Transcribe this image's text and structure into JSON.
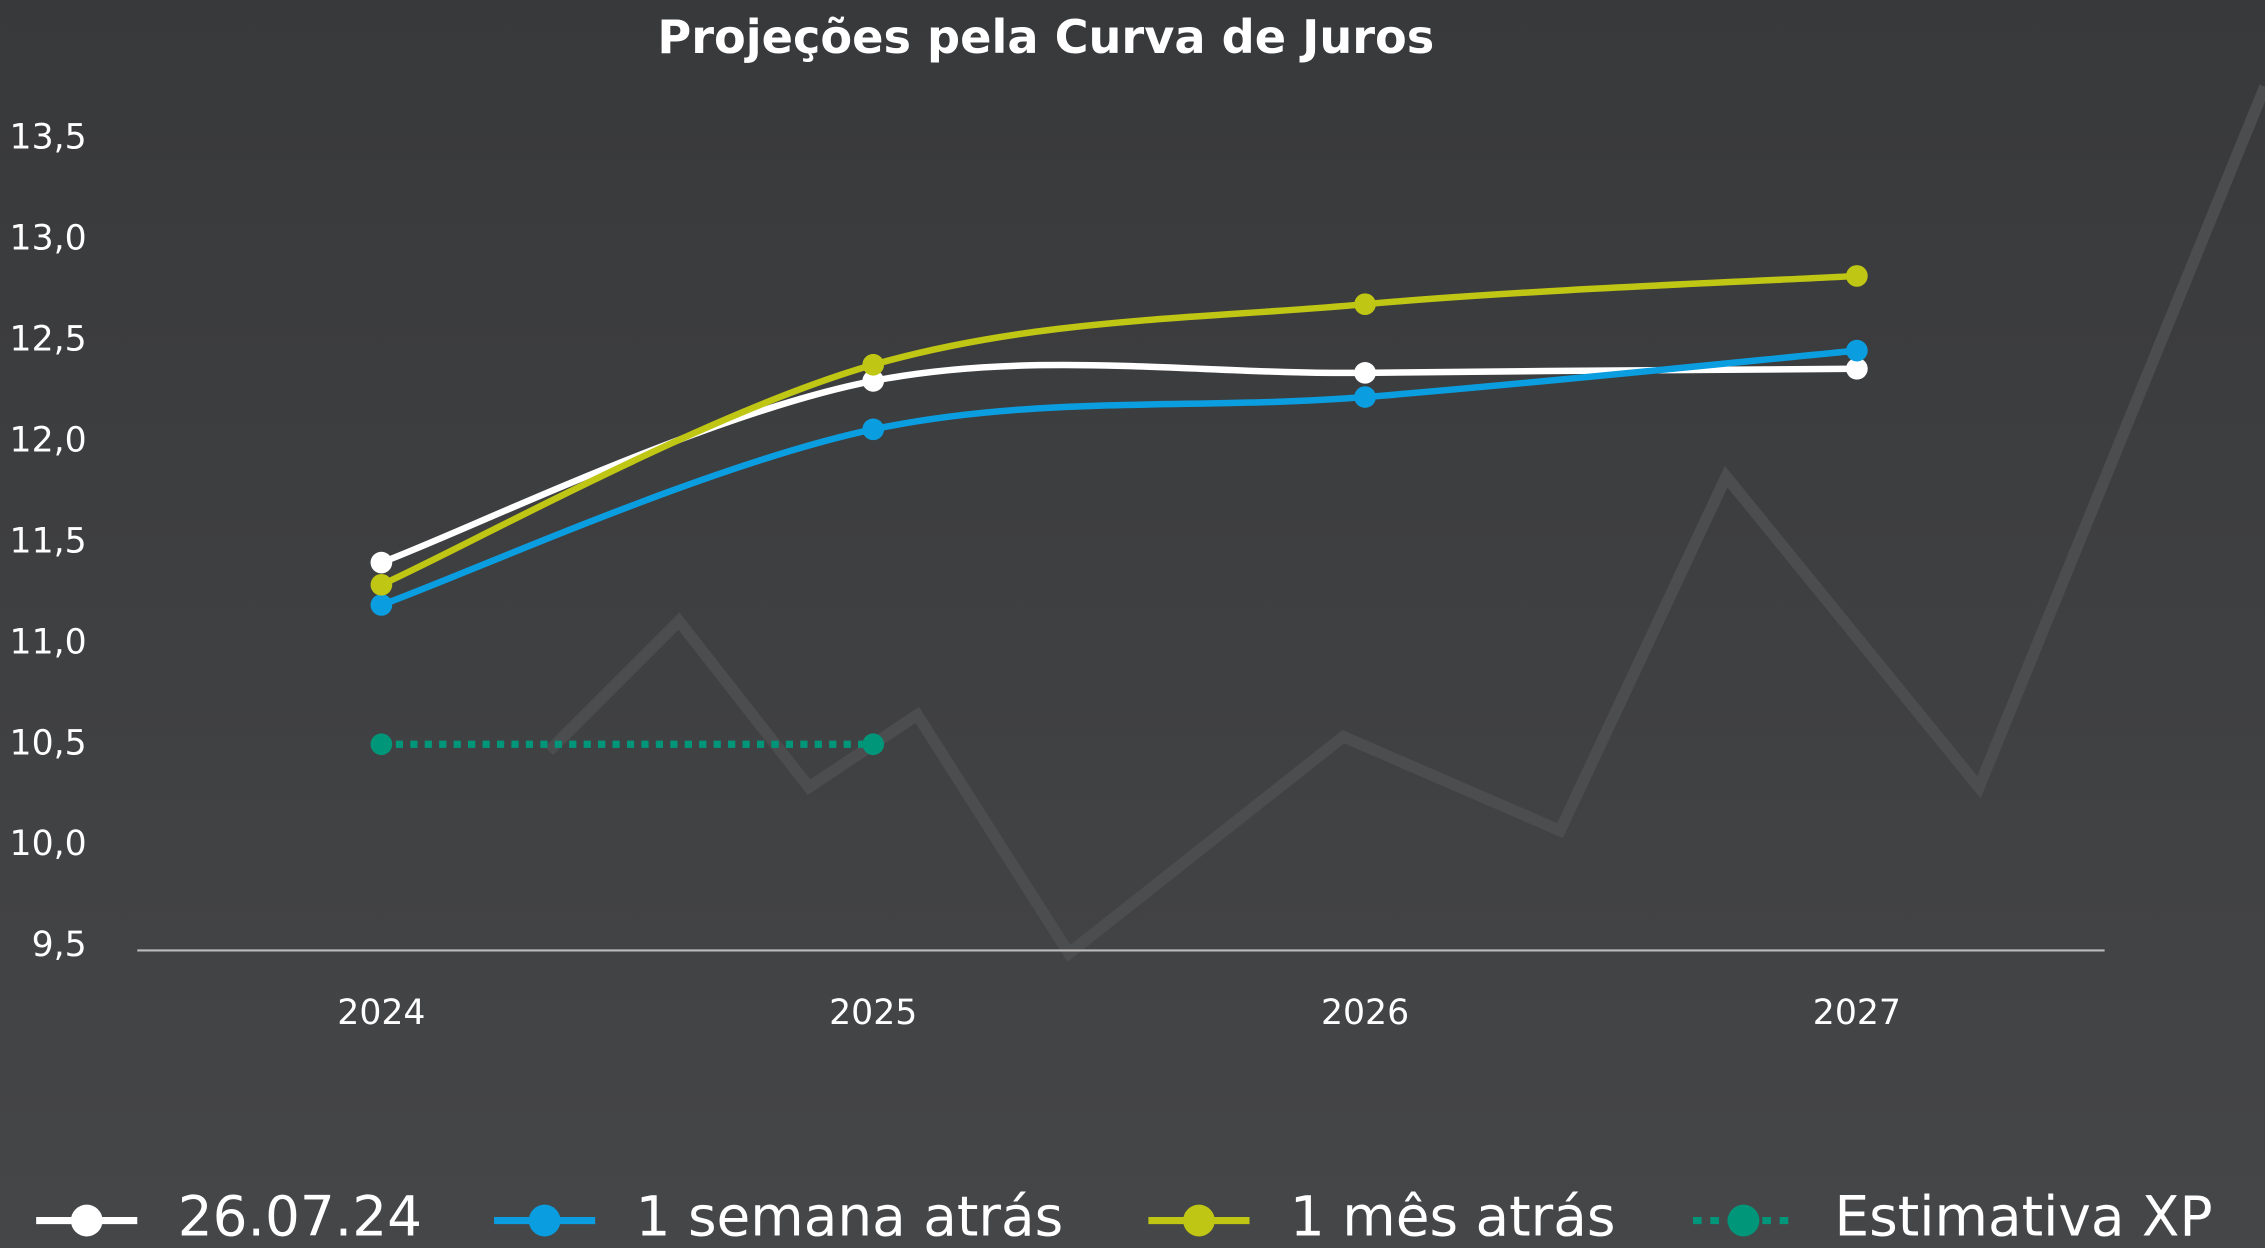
{
  "chart_data": {
    "type": "line",
    "title": "Projeções pela Curva de Juros",
    "categories": [
      "2024",
      "2025",
      "2026",
      "2027"
    ],
    "series": [
      {
        "name": "26.07.24",
        "color": "#ffffff",
        "values": [
          11.4,
          12.3,
          12.34,
          12.36
        ]
      },
      {
        "name": "1 semana atrás",
        "color": "#0a9ee0",
        "values": [
          11.19,
          12.06,
          12.22,
          12.45
        ]
      },
      {
        "name": "1 mês atrás",
        "color": "#bfc613",
        "values": [
          11.29,
          12.38,
          12.68,
          12.82
        ]
      },
      {
        "name": "Estimativa XP",
        "color": "#00967a",
        "dashed": true,
        "values": [
          10.5,
          10.5,
          null,
          null
        ]
      }
    ],
    "ylim": [
      9.5,
      13.5
    ],
    "yticks": [
      {
        "value": 9.5,
        "label": "9,5"
      },
      {
        "value": 10,
        "label": "10,0"
      },
      {
        "value": 10.5,
        "label": "10,5"
      },
      {
        "value": 11,
        "label": "11,0"
      },
      {
        "value": 11.5,
        "label": "11,5"
      },
      {
        "value": 12,
        "label": "12,0"
      },
      {
        "value": 12.5,
        "label": "12,5"
      },
      {
        "value": 13,
        "label": "13,0"
      },
      {
        "value": 13.5,
        "label": "13,5"
      }
    ],
    "legend": "bottom"
  }
}
